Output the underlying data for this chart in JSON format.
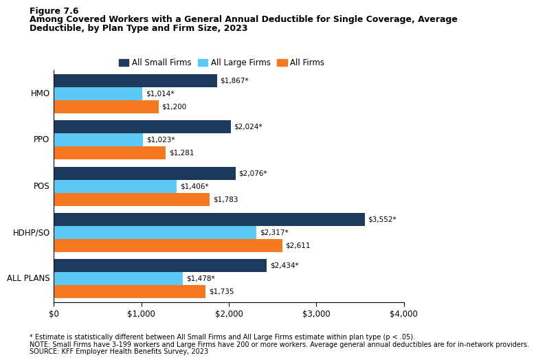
{
  "title_line1": "Figure 7.6",
  "title_line2": "Among Covered Workers with a General Annual Deductible for Single Coverage, Average",
  "title_line3": "Deductible, by Plan Type and Firm Size, 2023",
  "categories": [
    "HMO",
    "PPO",
    "POS",
    "HDHP/SO",
    "ALL PLANS"
  ],
  "series": {
    "All Small Firms": [
      1867,
      2024,
      2076,
      3552,
      2434
    ],
    "All Large Firms": [
      1014,
      1023,
      1406,
      2317,
      1478
    ],
    "All Firms": [
      1200,
      1281,
      1783,
      2611,
      1735
    ]
  },
  "labels": {
    "All Small Firms": [
      "$1,867*",
      "$2,024*",
      "$2,076*",
      "$3,552*",
      "$2,434*"
    ],
    "All Large Firms": [
      "$1,014*",
      "$1,023*",
      "$1,406*",
      "$2,317*",
      "$1,478*"
    ],
    "All Firms": [
      "$1,200",
      "$1,281",
      "$1,783",
      "$2,611",
      "$1,735"
    ]
  },
  "colors": {
    "All Small Firms": "#1b3a5c",
    "All Large Firms": "#5bc8f5",
    "All Firms": "#f47920"
  },
  "xlim": [
    0,
    4000
  ],
  "xticks": [
    0,
    1000,
    2000,
    3000,
    4000
  ],
  "xticklabels": [
    "$0",
    "$1,000",
    "$2,000",
    "$3,000",
    "$4,000"
  ],
  "footnote1": "* Estimate is statistically different between All Small Firms and All Large Firms estimate within plan type (p < .05).",
  "footnote2": "NOTE: Small Firms have 3-199 workers and Large Firms have 200 or more workers. Average general annual deductibles are for in-network providers.",
  "footnote3": "SOURCE: KFF Employer Health Benefits Survey, 2023"
}
